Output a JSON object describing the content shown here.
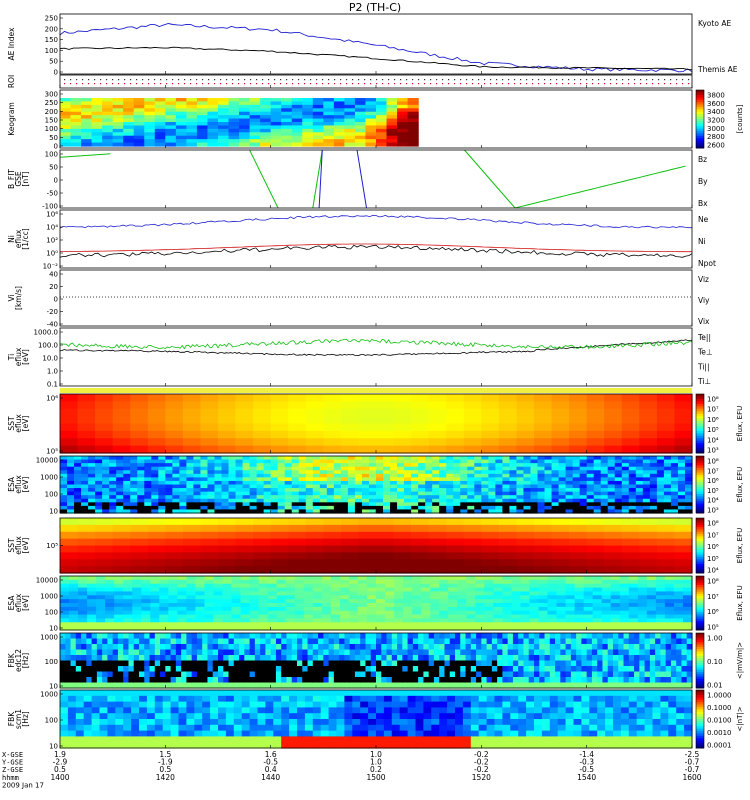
{
  "title": "P2 (TH-C)",
  "colors": {
    "blue": "#1f1fd0",
    "red": "#d01010",
    "green": "#10c010",
    "black": "#000000"
  },
  "chart_data": [
    {
      "type": "line",
      "panel": "AE Index",
      "ylabel": "AE Index",
      "ylim": [
        0,
        250
      ],
      "yticks": [
        "250",
        "200",
        "150",
        "100",
        "50",
        "0"
      ],
      "x": [
        "1400",
        "1420",
        "1440",
        "1500",
        "1520",
        "1540",
        "1600"
      ],
      "series": [
        {
          "name": "Kyoto AE",
          "color": "#1f1fd0",
          "values": [
            170,
            205,
            185,
            120,
            45,
            20,
            15
          ]
        },
        {
          "name": "Themis AE",
          "color": "#000000",
          "values": [
            105,
            110,
            95,
            65,
            30,
            25,
            20
          ]
        }
      ]
    },
    {
      "type": "line",
      "panel": "ROI",
      "ylabel": "ROI"
    },
    {
      "type": "heatmap",
      "panel": "Keogram",
      "ylabel": "Keogram",
      "yticks": [
        "300",
        "250",
        "200",
        "150",
        "100",
        "50",
        "0"
      ],
      "colorbar_label": "[counts]",
      "colorbar_ticks": [
        "3800",
        "3600",
        "3400",
        "3200",
        "3000",
        "2800",
        "2600"
      ]
    },
    {
      "type": "line",
      "panel": "B_FIT",
      "ylabel": "B_FIT",
      "ylabel2": "GSE",
      "ylabel3": "[nT]",
      "ylim": [
        -100,
        100
      ],
      "yticks": [
        "100",
        "50",
        "0",
        "-50",
        "-100"
      ],
      "series": [
        {
          "name": "Bz",
          "color": "#d01010"
        },
        {
          "name": "By",
          "color": "#10c010"
        },
        {
          "name": "Bx",
          "color": "#1f1fd0"
        }
      ]
    },
    {
      "type": "line",
      "panel": "Ni",
      "ylabel": "Ni",
      "ylabel2": "eflux",
      "ylabel3": "[1/cc]",
      "yticks": [
        "10⁶",
        "10⁴",
        "10²",
        "10⁰",
        "10⁻²"
      ],
      "series": [
        {
          "name": "Ne",
          "color": "#d01010"
        },
        {
          "name": "Ni",
          "color": "#000000"
        },
        {
          "name": "Npot",
          "color": "#1f1fd0"
        }
      ]
    },
    {
      "type": "line",
      "panel": "Vi",
      "ylabel": "Vi",
      "ylabel2": "[km/s]",
      "ylim": [
        -50,
        50
      ],
      "yticks": [
        "40",
        "20",
        "0",
        "-20",
        "-40"
      ],
      "series": [
        {
          "name": "Viz",
          "color": "#d01010"
        },
        {
          "name": "Viy",
          "color": "#10c010"
        },
        {
          "name": "Vix",
          "color": "#1f1fd0"
        }
      ]
    },
    {
      "type": "line",
      "panel": "Ti",
      "ylabel": "Ti",
      "ylabel2": "eflux",
      "ylabel3": "[eV]",
      "yticks": [
        "1000.0",
        "100.0",
        "10.0",
        "1.0",
        "0.1"
      ],
      "series": [
        {
          "name": "Te||",
          "color": "#000000"
        },
        {
          "name": "Te⊥",
          "color": "#d01010"
        },
        {
          "name": "Ti||",
          "color": "#10c010"
        },
        {
          "name": "Ti⊥",
          "color": "#1f1fd0"
        }
      ]
    },
    {
      "type": "heatmap",
      "panel": "SST eflux",
      "ylabel": "SST",
      "ylabel2": "eflux",
      "ylabel3": "[eV]",
      "yticks": [
        "10⁶",
        "10⁵"
      ],
      "colorbar_label": "Eflux, EFU",
      "colorbar_ticks": [
        "10⁸",
        "10⁷",
        "10⁶",
        "10⁵",
        "10⁴",
        "10³"
      ]
    },
    {
      "type": "heatmap",
      "panel": "ESA eflux",
      "ylabel": "ESA",
      "ylabel2": "eflux",
      "ylabel3": "[eV]",
      "yticks": [
        "10000",
        "1000",
        "100",
        "10"
      ],
      "colorbar_label": "Eflux, EFU",
      "colorbar_ticks": [
        "10⁸",
        "10⁷",
        "10⁶",
        "10⁵",
        "10⁴",
        "10³"
      ]
    },
    {
      "type": "heatmap",
      "panel": "SST eflux 2",
      "ylabel": "SST",
      "ylabel2": "eflux",
      "ylabel3": "[eV]",
      "yticks": [
        "10⁵"
      ],
      "colorbar_label": "Eflux, EFU",
      "colorbar_ticks": [
        "10⁸",
        "10⁷",
        "10⁶",
        "10⁵",
        "10⁴"
      ]
    },
    {
      "type": "heatmap",
      "panel": "ESA eflux 2",
      "ylabel": "ESA",
      "ylabel2": "eflux",
      "ylabel3": "[eV]",
      "yticks": [
        "10000",
        "1000",
        "100",
        "10"
      ],
      "colorbar_label": "Eflux, EFU",
      "colorbar_ticks": [
        "10⁸",
        "10⁷",
        "10⁶",
        "10⁵"
      ]
    },
    {
      "type": "heatmap",
      "panel": "FBK edc12",
      "ylabel": "FBK",
      "ylabel2": "edc12",
      "ylabel3": "[Hz]",
      "yticks": [
        "1000",
        "100",
        "10"
      ],
      "colorbar_label": "<|mV/m|>",
      "colorbar_ticks": [
        "1.00",
        "0.10",
        "0.01"
      ]
    },
    {
      "type": "heatmap",
      "panel": "FBK scm1",
      "ylabel": "FBK",
      "ylabel2": "scm1",
      "ylabel3": "[Hz]",
      "yticks": [
        "1000",
        "100",
        "10"
      ],
      "colorbar_label": "<|nT|>",
      "colorbar_ticks": [
        "1.0000",
        "0.1000",
        "0.0100",
        "0.0010",
        "0.0001"
      ]
    }
  ],
  "x_axis": {
    "rows": [
      {
        "label": "X-GSE",
        "values": [
          "1.9",
          "1.5",
          "1.6",
          "1.0",
          "-0.2",
          "-1.4",
          "-2.5"
        ]
      },
      {
        "label": "Y-GSE",
        "values": [
          "-2.9",
          "-1.9",
          "-0.5",
          "1.0",
          "-0.2",
          "-0.3",
          "-0.7"
        ]
      },
      {
        "label": "Z-GSE",
        "values": [
          "0.5",
          "0.5",
          "0.4",
          "0.2",
          "-0.2",
          "-0.5",
          "-0.7"
        ]
      },
      {
        "label": "hhmm",
        "values": [
          "1400",
          "1420",
          "1440",
          "1500",
          "1520",
          "1540",
          "1600"
        ]
      }
    ],
    "date": "2009 Jan 17"
  }
}
